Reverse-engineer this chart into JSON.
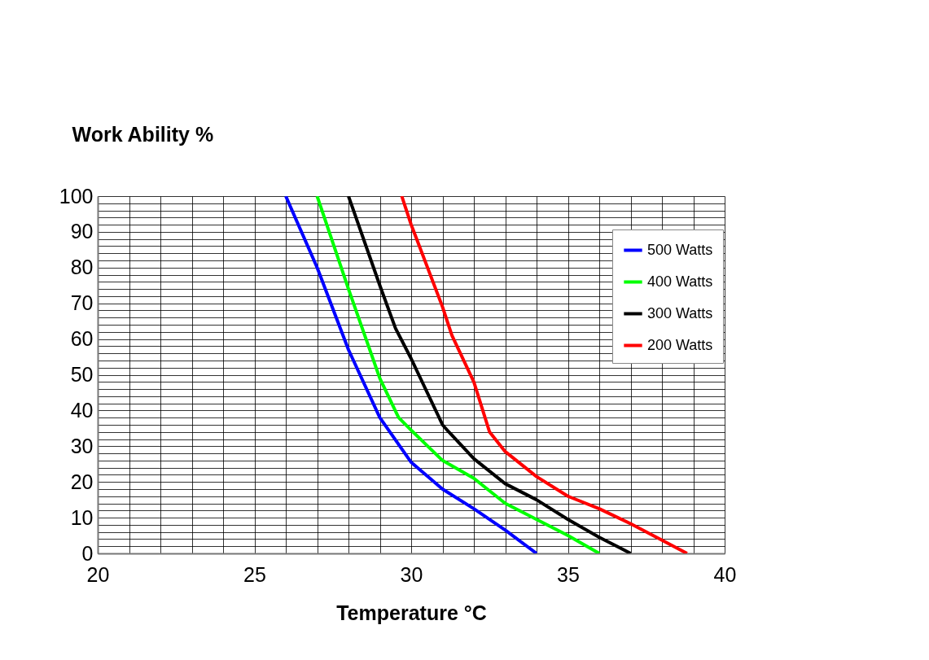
{
  "chart_data": {
    "type": "line",
    "xlabel": "Temperature °C",
    "ylabel": "Work Ability %",
    "xlim": [
      20,
      40
    ],
    "xticks": [
      20,
      25,
      30,
      35,
      40
    ],
    "ylim": [
      0,
      100
    ],
    "yticks": [
      0,
      10,
      20,
      30,
      40,
      50,
      60,
      70,
      80,
      90,
      100
    ],
    "grid": true,
    "legend": "top right",
    "marker": "none",
    "line_style": "solid",
    "series": [
      {
        "name": "500 Watts",
        "color": "#0000ff",
        "x": [
          26,
          27,
          28,
          29,
          30,
          31,
          32,
          33,
          34
        ],
        "values": [
          100,
          80,
          57,
          38,
          25.5,
          18,
          12.5,
          6.5,
          0
        ]
      },
      {
        "name": "400 Watts",
        "color": "#00ff00",
        "x": [
          27,
          28,
          29,
          29.6,
          30,
          31,
          32,
          33,
          34,
          35,
          36
        ],
        "values": [
          100,
          74,
          49,
          38,
          34.5,
          26,
          21,
          14,
          9.5,
          5,
          0
        ]
      },
      {
        "name": "300 Watts",
        "color": "#000000",
        "x": [
          28,
          29,
          29.5,
          30,
          31,
          31.2,
          32,
          33,
          34,
          35,
          36,
          37
        ],
        "values": [
          100,
          75,
          63,
          54.5,
          36,
          34,
          26.5,
          19.5,
          15,
          9.5,
          4.5,
          0
        ]
      },
      {
        "name": "200 Watts",
        "color": "#ff0000",
        "x": [
          29.7,
          30,
          31,
          31.3,
          32,
          32.5,
          33,
          34,
          35,
          36,
          37,
          38,
          38.8
        ],
        "values": [
          100,
          92,
          69,
          61,
          48,
          34,
          28.5,
          21.5,
          16,
          12.5,
          8.3,
          3.7,
          0
        ]
      }
    ]
  }
}
